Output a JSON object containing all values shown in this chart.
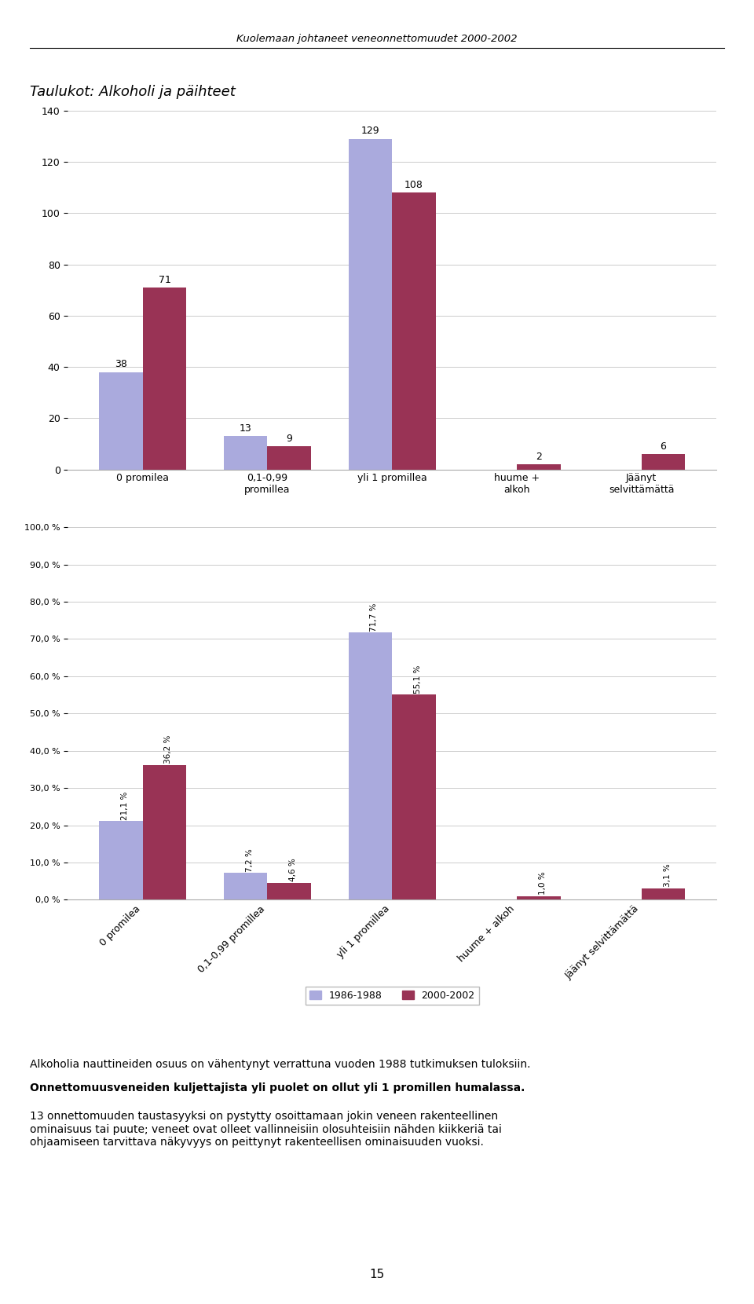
{
  "page_header": "Kuolemaan johtaneet veneonnettomuudet 2000-2002",
  "section_title": "Taulukot: Alkoholi ja päihteet",
  "chart1": {
    "categories": [
      "0 promilea",
      "0,1-0,99\npromillea",
      "yli 1 promillea",
      "huume +\nalkoh",
      "Jäänyt\nselvittämättä"
    ],
    "series1_label": "1986-1988",
    "series2_label": "2000-2002",
    "series1_values": [
      38,
      13,
      129,
      0,
      0
    ],
    "series2_values": [
      71,
      9,
      108,
      2,
      6
    ],
    "series1_color": "#aaaadd",
    "series2_color": "#993355",
    "ylim": [
      0,
      145
    ],
    "yticks": [
      0,
      20,
      40,
      60,
      80,
      100,
      120,
      140
    ],
    "bar_labels_1": [
      "38",
      "13",
      "129",
      "",
      ""
    ],
    "bar_labels_2": [
      "71",
      "9",
      "108",
      "2",
      "6"
    ]
  },
  "chart2": {
    "categories": [
      "0 promilea",
      "0,1-0,99 promillea",
      "yli 1 promillea",
      "huume + alkoh",
      "Jäänyt selvittämättä"
    ],
    "series1_label": "1986-1988",
    "series2_label": "2000-2002",
    "series1_values": [
      21.1,
      7.2,
      71.7,
      0.0,
      0.0
    ],
    "series2_values": [
      36.2,
      4.6,
      55.1,
      1.0,
      3.1
    ],
    "series1_color": "#aaaadd",
    "series2_color": "#993355",
    "ylim": [
      0,
      105
    ],
    "ytick_labels": [
      "0,0 %",
      "10,0 %",
      "20,0 %",
      "30,0 %",
      "40,0 %",
      "50,0 %",
      "60,0 %",
      "70,0 %",
      "80,0 %",
      "90,0 %",
      "100,0 %"
    ],
    "ytick_values": [
      0,
      10,
      20,
      30,
      40,
      50,
      60,
      70,
      80,
      90,
      100
    ],
    "bar_labels_1": [
      "21,1 %",
      "7,2 %",
      "71,7 %",
      "",
      ""
    ],
    "bar_labels_2": [
      "36,2 %",
      "4,6 %",
      "55,1 %",
      "1,0 %",
      "3,1 %"
    ]
  },
  "text1": "Alkoholia nauttineiden osuus on vähentynyt verrattuna vuoden 1988 tutkimuksen tuloksiin.",
  "text2": "Onnettomuusveneiden kuljettajista yli puolet on ollut yli 1 promillen humalassa.",
  "text3": "13 onnettomuuden taustasyyksi on pystytty osoittamaan jokin veneen rakenteellinen\nominaisuus tai puute; veneet ovat olleet vallinneisiin olosuhteisiin nähden kiikkeriä tai\nohjaamiseen tarvittava näkyvyys on peittynyt rakenteellisen ominaisuuden vuoksi.",
  "page_number": "15",
  "background_color": "#ffffff",
  "chart_bg": "#ffffff",
  "grid_color": "#cccccc"
}
